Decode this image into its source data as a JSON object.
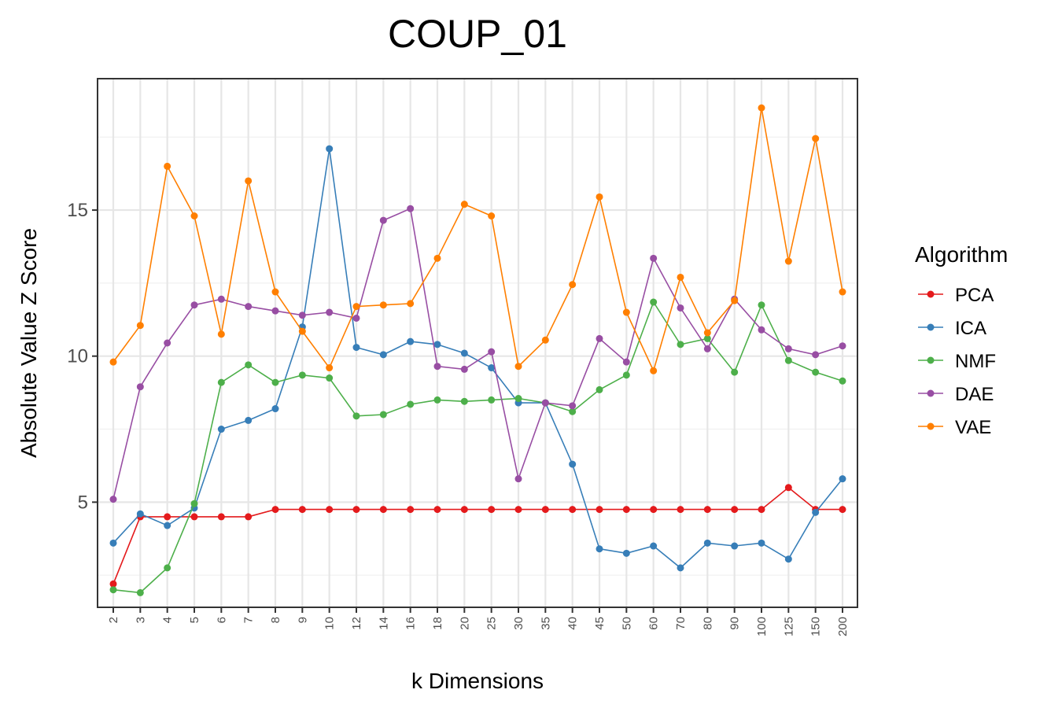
{
  "chart_data": {
    "type": "line",
    "title": "COUP_01",
    "xlabel": "k Dimensions",
    "ylabel": "Absolute Value Z Score",
    "categories": [
      "2",
      "3",
      "4",
      "5",
      "6",
      "7",
      "8",
      "9",
      "10",
      "12",
      "14",
      "16",
      "18",
      "20",
      "25",
      "30",
      "35",
      "40",
      "45",
      "50",
      "60",
      "70",
      "80",
      "90",
      "100",
      "125",
      "150",
      "200"
    ],
    "yticks": [
      5,
      10,
      15
    ],
    "ylim": [
      1.4,
      19.5
    ],
    "grid": true,
    "legend": {
      "title": "Algorithm",
      "position": "right"
    },
    "series": [
      {
        "name": "PCA",
        "color": "#e41a1c",
        "values": [
          2.2,
          4.5,
          4.5,
          4.5,
          4.5,
          4.5,
          4.75,
          4.75,
          4.75,
          4.75,
          4.75,
          4.75,
          4.75,
          4.75,
          4.75,
          4.75,
          4.75,
          4.75,
          4.75,
          4.75,
          4.75,
          4.75,
          4.75,
          4.75,
          4.75,
          5.5,
          4.75,
          4.75
        ]
      },
      {
        "name": "ICA",
        "color": "#377eb8",
        "values": [
          3.6,
          4.6,
          4.2,
          4.8,
          7.5,
          7.8,
          8.2,
          11.0,
          17.1,
          10.3,
          10.05,
          10.5,
          10.4,
          10.1,
          9.6,
          8.4,
          8.4,
          6.3,
          3.4,
          3.25,
          3.5,
          2.75,
          3.6,
          3.5,
          3.6,
          3.05,
          4.65,
          5.8
        ]
      },
      {
        "name": "NMF",
        "color": "#4daf4a",
        "values": [
          2.0,
          1.9,
          2.75,
          4.95,
          9.1,
          9.7,
          9.1,
          9.35,
          9.25,
          7.95,
          8.0,
          8.35,
          8.5,
          8.45,
          8.5,
          8.55,
          8.4,
          8.1,
          8.85,
          9.35,
          11.85,
          10.4,
          10.6,
          9.45,
          11.75,
          9.85,
          9.45,
          9.15
        ]
      },
      {
        "name": "DAE",
        "color": "#984ea3",
        "values": [
          5.1,
          8.95,
          10.45,
          11.75,
          11.95,
          11.7,
          11.55,
          11.4,
          11.5,
          11.3,
          14.65,
          15.05,
          9.65,
          9.55,
          10.15,
          5.8,
          8.4,
          8.3,
          10.6,
          9.8,
          13.35,
          11.65,
          10.25,
          11.95,
          10.9,
          10.25,
          10.05,
          10.35
        ]
      },
      {
        "name": "VAE",
        "color": "#ff7f00",
        "values": [
          9.8,
          11.05,
          16.5,
          14.8,
          10.75,
          16.0,
          12.2,
          10.85,
          9.6,
          11.7,
          11.75,
          11.8,
          13.35,
          15.2,
          14.8,
          9.65,
          10.55,
          12.45,
          15.45,
          11.5,
          9.5,
          12.7,
          10.8,
          11.9,
          18.5,
          13.25,
          17.45,
          12.2
        ]
      }
    ]
  }
}
